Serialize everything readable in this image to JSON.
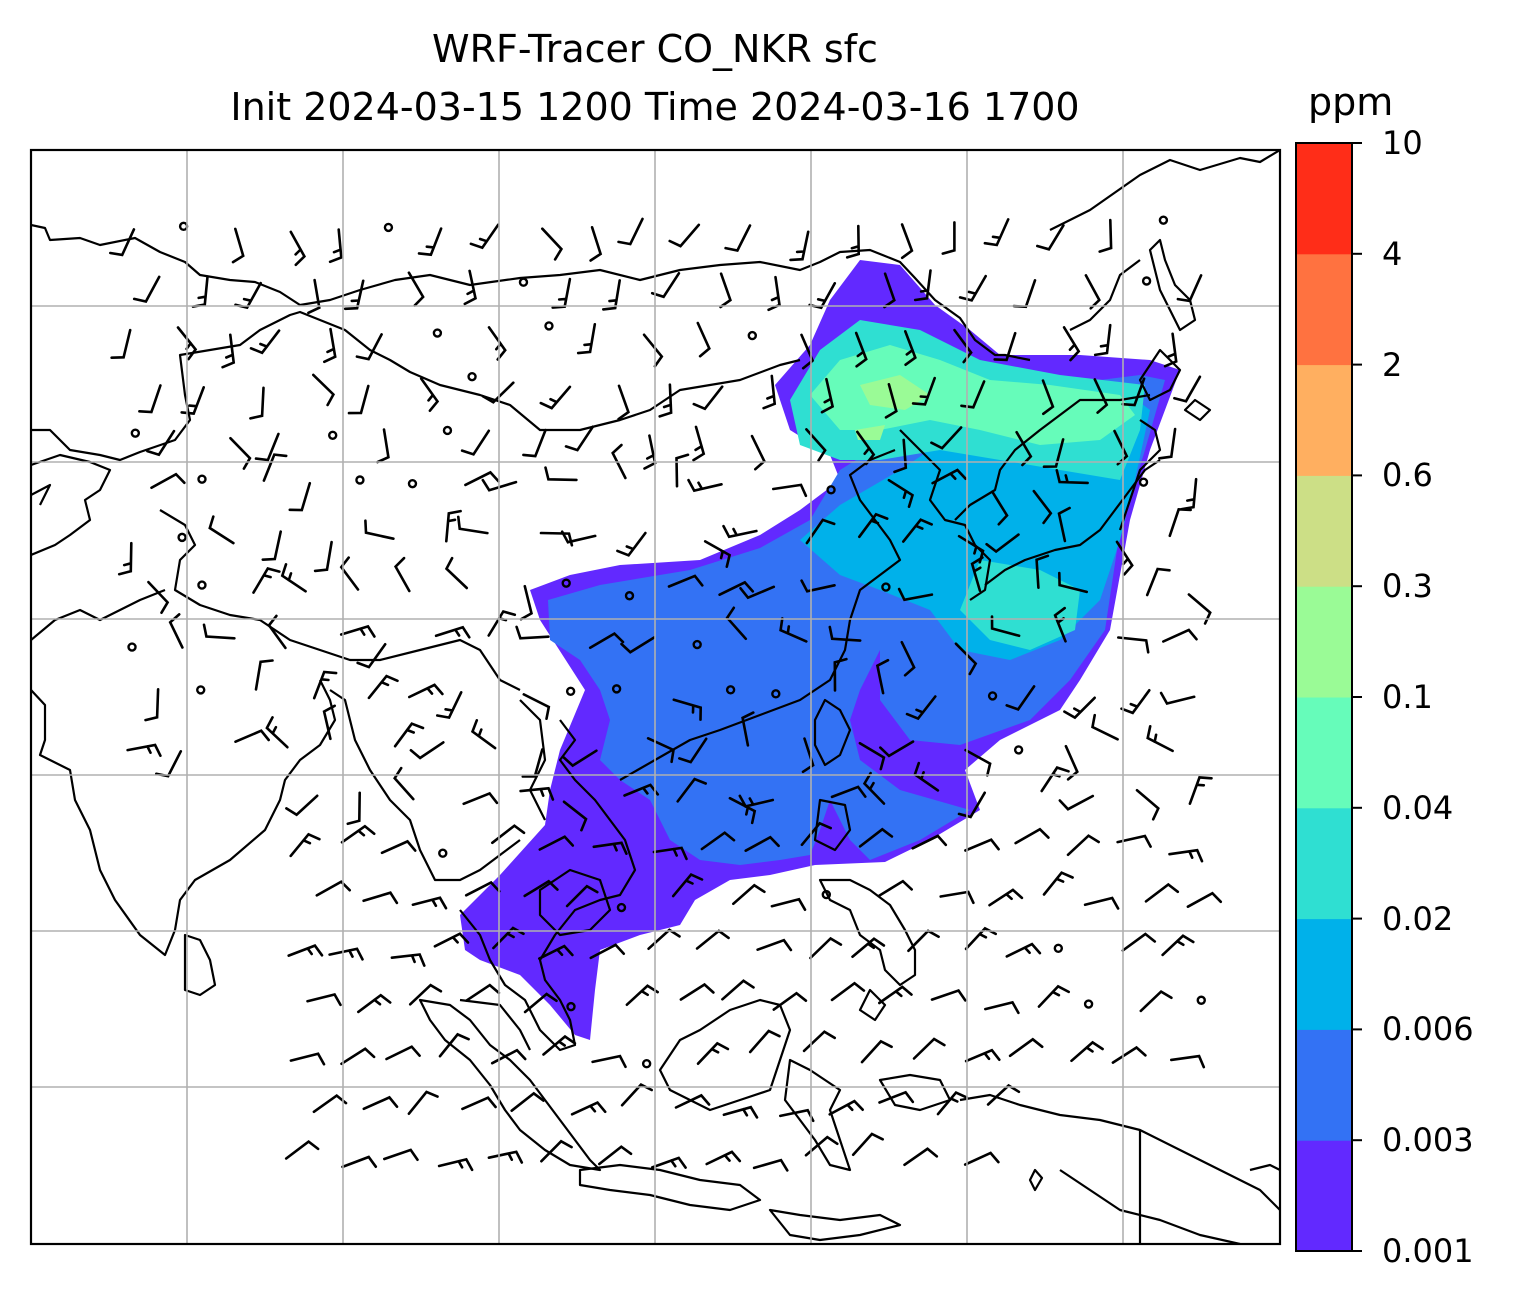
{
  "title": {
    "line1": "WRF-Tracer CO_NKR sfc",
    "line2": "Init 2024-03-15 1200 Time 2024-03-16 1700"
  },
  "colorbar": {
    "unit": "ppm",
    "levels": [
      "0.001",
      "0.003",
      "0.006",
      "0.02",
      "0.04",
      "0.1",
      "0.3",
      "0.6",
      "2",
      "4",
      "10"
    ],
    "colors": [
      "#6229ff",
      "#3372f4",
      "#00b1ea",
      "#2fdfd2",
      "#66fcba",
      "#9afb96",
      "#ccdf86",
      "#ffaf60",
      "#ff7240",
      "#ff2d18"
    ]
  },
  "map": {
    "type": "tracer concentration map with wind barbs",
    "gridlines": true,
    "coastlines": true,
    "wind_barbs": true,
    "plume_levels_visible": [
      "0.001",
      "0.003",
      "0.006",
      "0.02",
      "0.04",
      "0.1"
    ]
  }
}
